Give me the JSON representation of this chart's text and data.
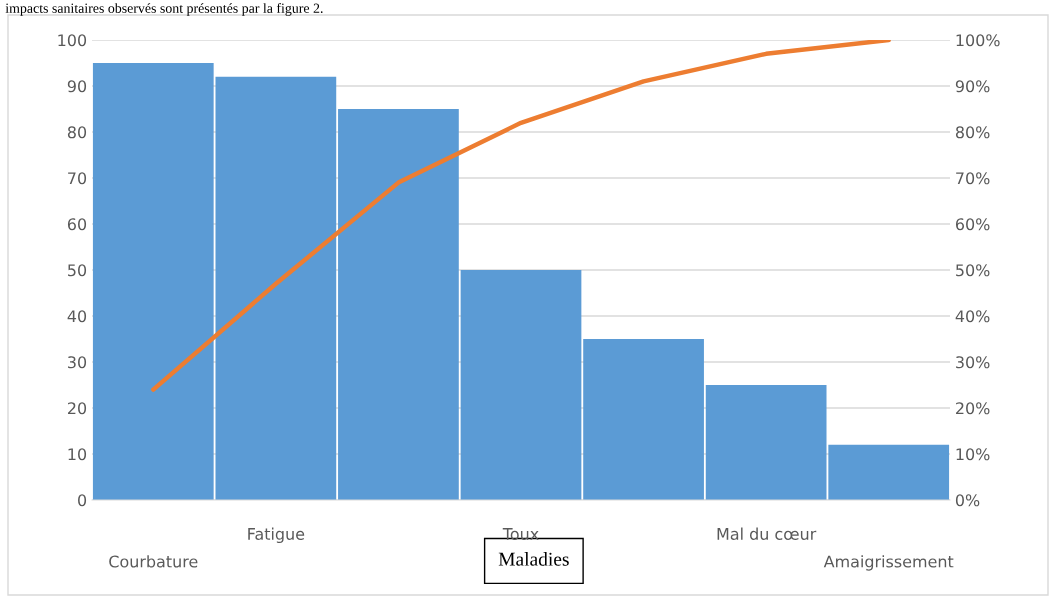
{
  "chart_data": {
    "type": "bar",
    "categories": [
      "Courbature",
      "Fatigue",
      null,
      "Toux",
      null,
      "Mal du cœur",
      "Amaigrissement"
    ],
    "series": [
      {
        "type": "bar",
        "color": "#5b9bd5",
        "values": [
          95,
          92,
          85,
          50,
          35,
          25,
          12
        ]
      },
      {
        "type": "line",
        "axis": "y2",
        "color": "#ed7d31",
        "values": [
          24,
          47,
          69,
          82,
          91,
          97,
          100
        ]
      }
    ],
    "xlabel": "Maladies",
    "annotations": [
      "impacts sanitaires observés sont présentés par la figure 2."
    ],
    "ylim": [
      0,
      100
    ],
    "yticks": [
      0,
      10,
      20,
      30,
      40,
      50,
      60,
      70,
      80,
      90,
      100
    ],
    "y2lim": [
      0,
      100
    ],
    "y2ticks": [
      {
        "value": 0,
        "label": "0%"
      },
      {
        "value": 10,
        "label": "10%"
      },
      {
        "value": 20,
        "label": "20%"
      },
      {
        "value": 30,
        "label": "30%"
      },
      {
        "value": 40,
        "label": "40%"
      },
      {
        "value": 50,
        "label": "50%"
      },
      {
        "value": 60,
        "label": "60%"
      },
      {
        "value": 70,
        "label": "70%"
      },
      {
        "value": 80,
        "label": "80%"
      },
      {
        "value": 90,
        "label": "90%"
      },
      {
        "value": 100,
        "label": "100%"
      }
    ],
    "grid": "y",
    "line_style": "solid",
    "marker": "none"
  }
}
